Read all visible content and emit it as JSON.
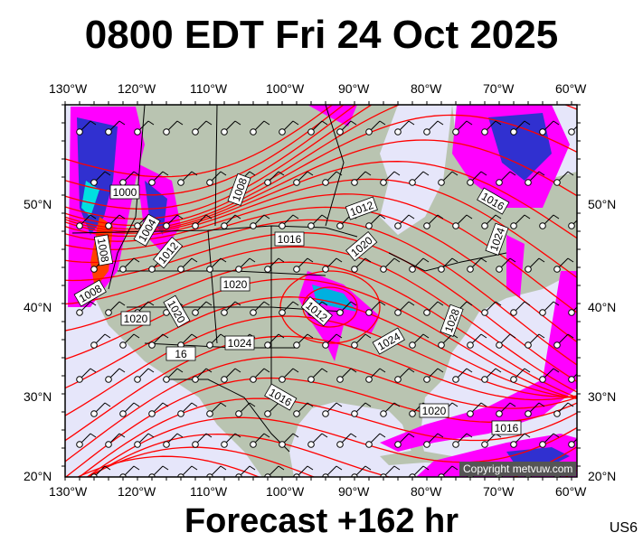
{
  "title": "0800 EDT Fri 24 Oct 2025",
  "footer": "Forecast +162 hr",
  "region_code": "US6",
  "copyright": "Copyright metvuw.com",
  "lon_labels": [
    "130°W",
    "120°W",
    "110°W",
    "100°W",
    "90°W",
    "80°W",
    "70°W",
    "60°W"
  ],
  "lat_labels": [
    "50°N",
    "40°N",
    "30°N",
    "20°N"
  ],
  "isobar_labels": [
    "1000",
    "1004",
    "1008",
    "1008",
    "1008",
    "1012",
    "1012",
    "1012",
    "1016",
    "1016",
    "1016",
    "1016",
    "1020",
    "1020",
    "1020",
    "1020",
    "1020",
    "1024",
    "1024",
    "1024",
    "1028",
    "16"
  ],
  "colors": {
    "isobar": "#ff0000",
    "land": "#b9c4b1",
    "ocean": "#e6e6fa",
    "precip": "#ff00ff",
    "precip_heavy": "#3030d0"
  }
}
